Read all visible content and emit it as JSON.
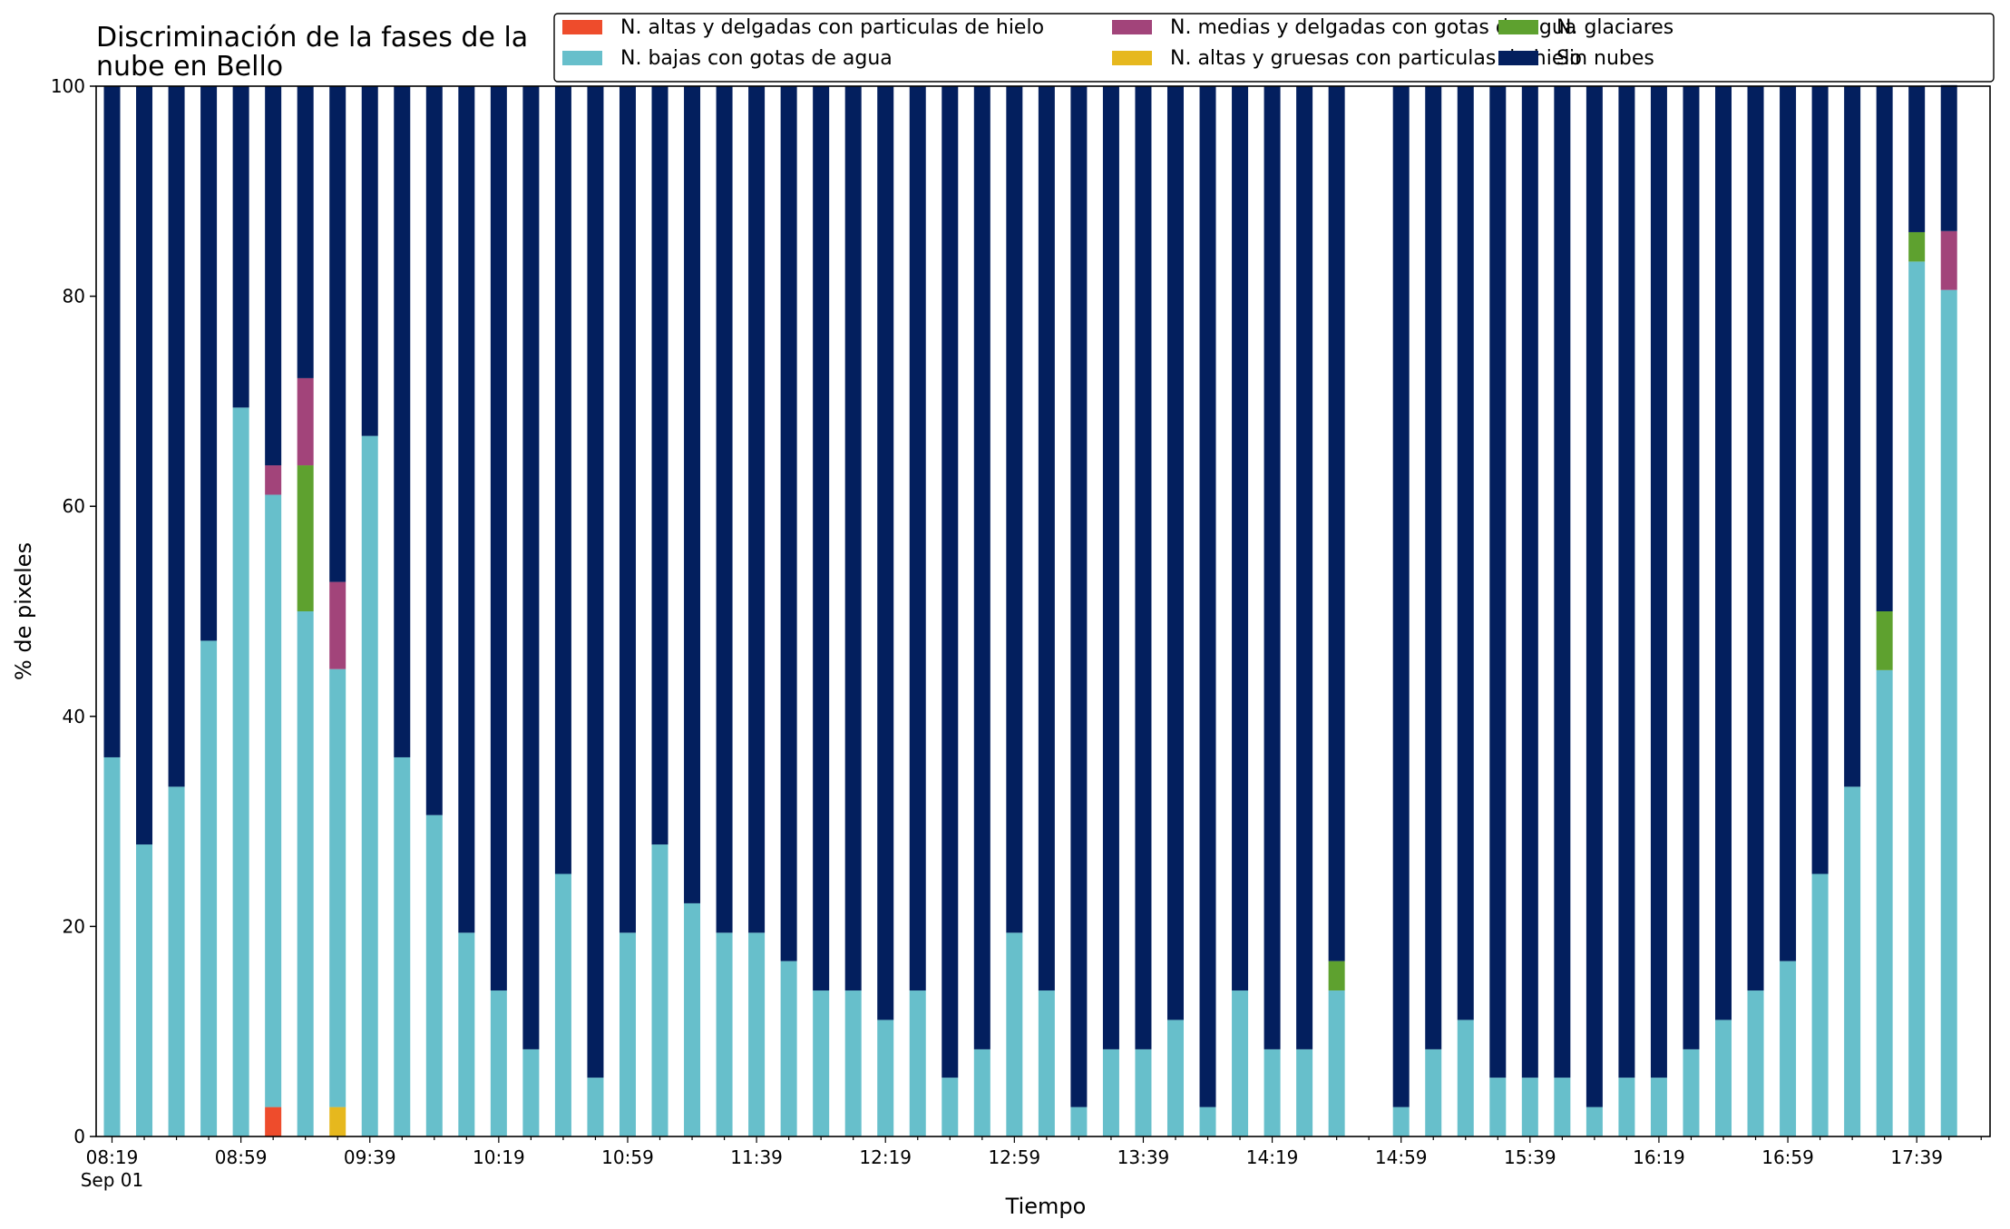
{
  "chart_data": {
    "type": "bar",
    "stacked": true,
    "title_lines": [
      "Discriminación de la fases de la",
      "nube en Bello"
    ],
    "xlabel": "Tiempo",
    "ylabel": "% de pixeles",
    "ylim": [
      0,
      100
    ],
    "yticks": [
      "0",
      "20",
      "40",
      "60",
      "80",
      "100"
    ],
    "x_tick_labels": [
      "08:19",
      "08:59",
      "09:39",
      "10:19",
      "10:59",
      "11:39",
      "12:19",
      "12:59",
      "13:39",
      "14:19",
      "14:59",
      "15:39",
      "16:19",
      "16:59",
      "17:39"
    ],
    "x_date_label": "Sep 01",
    "grid": false,
    "legend_position": "top-right",
    "categories": [
      "08:19",
      "08:29",
      "08:39",
      "08:49",
      "08:59",
      "09:09",
      "09:19",
      "09:29",
      "09:39",
      "09:49",
      "09:59",
      "10:09",
      "10:19",
      "10:29",
      "10:39",
      "10:49",
      "10:59",
      "11:09",
      "11:19",
      "11:29",
      "11:39",
      "11:49",
      "11:59",
      "12:09",
      "12:19",
      "12:29",
      "12:39",
      "12:49",
      "12:59",
      "13:09",
      "13:19",
      "13:29",
      "13:39",
      "13:49",
      "13:59",
      "14:09",
      "14:19",
      "14:29",
      "14:39",
      "14:49",
      "14:59",
      "15:09",
      "15:19",
      "15:29",
      "15:39",
      "15:49",
      "15:59",
      "16:09",
      "16:19",
      "16:29",
      "16:39",
      "16:49",
      "16:59",
      "17:09",
      "17:19",
      "17:29",
      "17:39",
      "17:49"
    ],
    "series": [
      {
        "name": "N. altas y delgadas con particulas de hielo",
        "color": "#ee4c2c",
        "values": [
          0,
          0,
          0,
          0,
          0,
          2.8,
          0,
          0,
          0,
          0,
          0,
          0,
          0,
          0,
          0,
          0,
          0,
          0,
          0,
          0,
          0,
          0,
          0,
          0,
          0,
          0,
          0,
          0,
          0,
          0,
          0,
          0,
          0,
          0,
          0,
          0,
          0,
          0,
          0,
          0,
          0,
          0,
          0,
          0,
          0,
          0,
          0,
          0,
          0,
          0,
          0,
          0,
          0,
          0,
          0,
          0,
          0,
          0
        ]
      },
      {
        "name": "N. altas y gruesas con particulas de hielo",
        "color": "#e6b81e",
        "values": [
          0,
          0,
          0,
          0,
          0,
          0,
          0,
          2.8,
          0,
          0,
          0,
          0,
          0,
          0,
          0,
          0,
          0,
          0,
          0,
          0,
          0,
          0,
          0,
          0,
          0,
          0,
          0,
          0,
          0,
          0,
          0,
          0,
          0,
          0,
          0,
          0,
          0,
          0,
          0,
          0,
          0,
          0,
          0,
          0,
          0,
          0,
          0,
          0,
          0,
          0,
          0,
          0,
          0,
          0,
          0,
          0,
          0,
          0
        ]
      },
      {
        "name": "N. bajas con gotas de agua",
        "color": "#67bfcb",
        "values": [
          36.1,
          27.8,
          33.3,
          47.2,
          69.4,
          58.3,
          50.0,
          41.7,
          66.7,
          36.1,
          30.6,
          19.4,
          13.9,
          8.3,
          25.0,
          5.6,
          19.4,
          27.8,
          22.2,
          19.4,
          19.4,
          16.7,
          13.9,
          13.9,
          11.1,
          13.9,
          5.6,
          8.3,
          19.4,
          13.9,
          2.8,
          8.3,
          8.3,
          11.1,
          2.8,
          13.9,
          8.3,
          8.3,
          13.9,
          0,
          2.8,
          8.3,
          11.1,
          5.6,
          5.6,
          5.6,
          2.8,
          5.6,
          5.6,
          8.3,
          11.1,
          13.9,
          16.7,
          25.0,
          33.3,
          44.4,
          83.3,
          80.6
        ]
      },
      {
        "name": "N. glaciares",
        "color": "#5ea12f",
        "values": [
          0,
          0,
          0,
          0,
          0,
          0,
          13.9,
          0,
          0,
          0,
          0,
          0,
          0,
          0,
          0,
          0,
          0,
          0,
          0,
          0,
          0,
          0,
          0,
          0,
          0,
          0,
          0,
          0,
          0,
          0,
          0,
          0,
          0,
          0,
          0,
          0,
          0,
          0,
          2.8,
          0,
          0,
          0,
          0,
          0,
          0,
          0,
          0,
          0,
          0,
          0,
          0,
          0,
          0,
          0,
          0,
          5.6,
          2.8,
          0
        ]
      },
      {
        "name": "N. medias y delgadas con gotas de agua",
        "color": "#a2447a",
        "values": [
          0,
          0,
          0,
          0,
          0,
          2.8,
          8.3,
          8.3,
          0,
          0,
          0,
          0,
          0,
          0,
          0,
          0,
          0,
          0,
          0,
          0,
          0,
          0,
          0,
          0,
          0,
          0,
          0,
          0,
          0,
          0,
          0,
          0,
          0,
          0,
          0,
          0,
          0,
          0,
          0,
          0,
          0,
          0,
          0,
          0,
          0,
          0,
          0,
          0,
          0,
          0,
          0,
          0,
          0,
          0,
          0,
          0,
          0,
          5.6
        ]
      },
      {
        "name": "Sin nubes",
        "color": "#031f5e",
        "values": [
          63.9,
          72.2,
          66.7,
          52.8,
          30.6,
          36.1,
          27.8,
          47.2,
          33.3,
          63.9,
          69.4,
          80.6,
          86.1,
          91.7,
          75.0,
          94.4,
          80.6,
          72.2,
          77.8,
          80.6,
          80.6,
          83.3,
          86.1,
          86.1,
          88.9,
          86.1,
          94.4,
          91.7,
          80.6,
          86.1,
          97.2,
          91.7,
          91.7,
          88.9,
          97.2,
          86.1,
          91.7,
          91.7,
          83.3,
          0,
          97.2,
          91.7,
          88.9,
          94.4,
          94.4,
          94.4,
          97.2,
          94.4,
          94.4,
          91.7,
          88.9,
          86.1,
          83.3,
          75.0,
          66.7,
          50.0,
          13.9,
          13.9
        ]
      }
    ],
    "legend": [
      {
        "label": "N. altas y delgadas con particulas de hielo",
        "color": "#ee4c2c"
      },
      {
        "label": "N. bajas con gotas de agua",
        "color": "#67bfcb"
      },
      {
        "label": "N. medias y delgadas con gotas de agua",
        "color": "#a2447a"
      },
      {
        "label": "N. altas y gruesas con particulas de hielo",
        "color": "#e6b81e"
      },
      {
        "label": "N. glaciares",
        "color": "#5ea12f"
      },
      {
        "label": "Sin nubes",
        "color": "#031f5e"
      }
    ]
  }
}
